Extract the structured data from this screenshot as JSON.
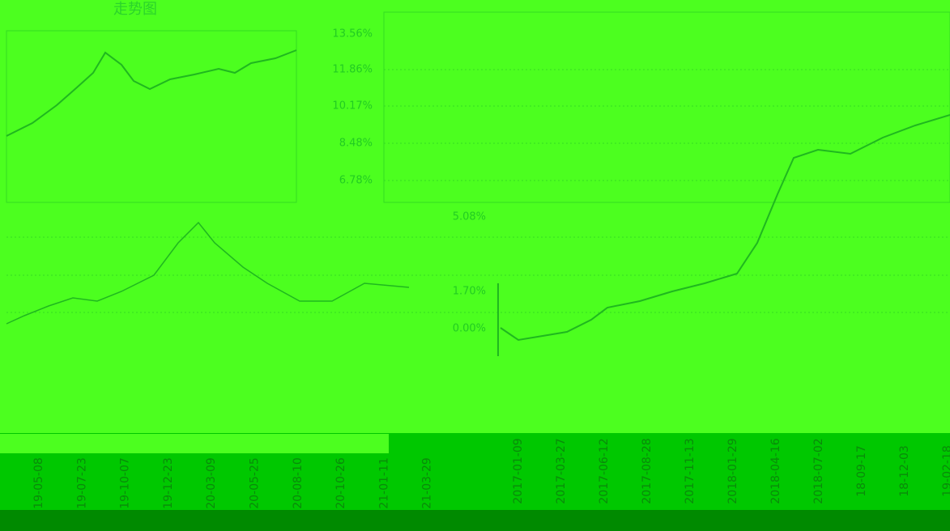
{
  "header": {
    "title": "走势图"
  },
  "right_panel": {
    "y_labels": [
      "13.56%",
      "11.86%",
      "10.17%",
      "8.48%",
      "6.78%"
    ],
    "lower_y_labels": [
      "5.08%",
      "1.70%",
      "0.00%"
    ],
    "dates": [
      "2017-01-09",
      "2017-03-27",
      "2017-06-12",
      "2017-08-28",
      "2017-11-13",
      "2018-01-29",
      "2018-04-16",
      "2018-07-02",
      "18-09-17",
      "18-12-03",
      "19-02-18"
    ]
  },
  "left_panel": {
    "dates": [
      "19-05-08",
      "19-07-23",
      "19-10-07",
      "19-12-23",
      "20-03-09",
      "20-05-25",
      "20-08-10",
      "20-10-26",
      "21-01-11",
      "21-03-29"
    ]
  }
}
